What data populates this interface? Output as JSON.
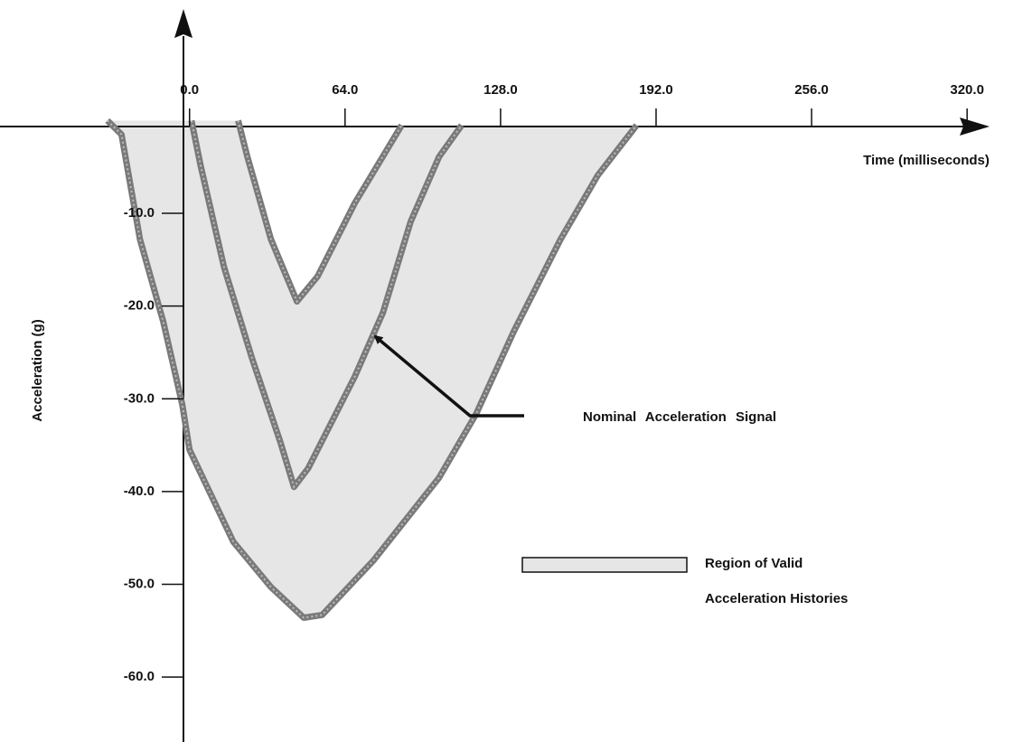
{
  "chart_data": {
    "type": "line",
    "x_label": "Time (milliseconds)",
    "y_label": "Acceleration (g)",
    "xlim": [
      -78,
      343
    ],
    "ylim": [
      -67,
      13
    ],
    "xticks": [
      {
        "value": 0,
        "label": "0.0"
      },
      {
        "value": 64,
        "label": "64.0"
      },
      {
        "value": 128,
        "label": "128.0"
      },
      {
        "value": 192,
        "label": "192.0"
      },
      {
        "value": 256,
        "label": "256.0"
      },
      {
        "value": 320,
        "label": "320.0"
      }
    ],
    "yticks": [
      {
        "value": -10,
        "label": "-10.0"
      },
      {
        "value": -20,
        "label": "-20.0"
      },
      {
        "value": -30,
        "label": "-30.0"
      },
      {
        "value": -40,
        "label": "-40.0"
      },
      {
        "value": -50,
        "label": "-50.0"
      },
      {
        "value": -60,
        "label": "-60.0"
      }
    ],
    "series": [
      {
        "color": "#7a7a7a",
        "x": [
          -33.8,
          -28,
          -20.4,
          -10.8,
          -3,
          0,
          18,
          33.5,
          47,
          54.6,
          75.8,
          102.7,
          118,
          133.5,
          152.7,
          168,
          184
        ],
        "values": [
          0,
          -1.5,
          -12.8,
          -21.7,
          -30.6,
          -35.5,
          -45.4,
          -50.3,
          -53.6,
          -53.3,
          -47.4,
          -38.5,
          -31.6,
          -22.7,
          -12.8,
          -5.9,
          -0.5
        ]
      },
      {
        "color": "#7a7a7a",
        "x": [
          0.8,
          4.6,
          14.2,
          25.8,
          37.3,
          43,
          48.8,
          68,
          79.6,
          91,
          102.7,
          112
        ],
        "values": [
          0,
          -4.9,
          -15.8,
          -25.7,
          -34.6,
          -39.5,
          -37.5,
          -27.6,
          -20.7,
          -10.9,
          -3.9,
          -0.5
        ]
      },
      {
        "color": "#7a7a7a",
        "x": [
          20,
          23.8,
          33.5,
          44.2,
          52.7,
          68,
          87.3
        ],
        "values": [
          0,
          -3.9,
          -12.8,
          -19.5,
          -16.8,
          -8.9,
          -0.5
        ]
      }
    ],
    "annotation": "Nominal Acceleration Signal",
    "region": {
      "color": "#e6e6e6",
      "label_lines": [
        "Region of Valid",
        "Acceleration Histories"
      ]
    }
  }
}
